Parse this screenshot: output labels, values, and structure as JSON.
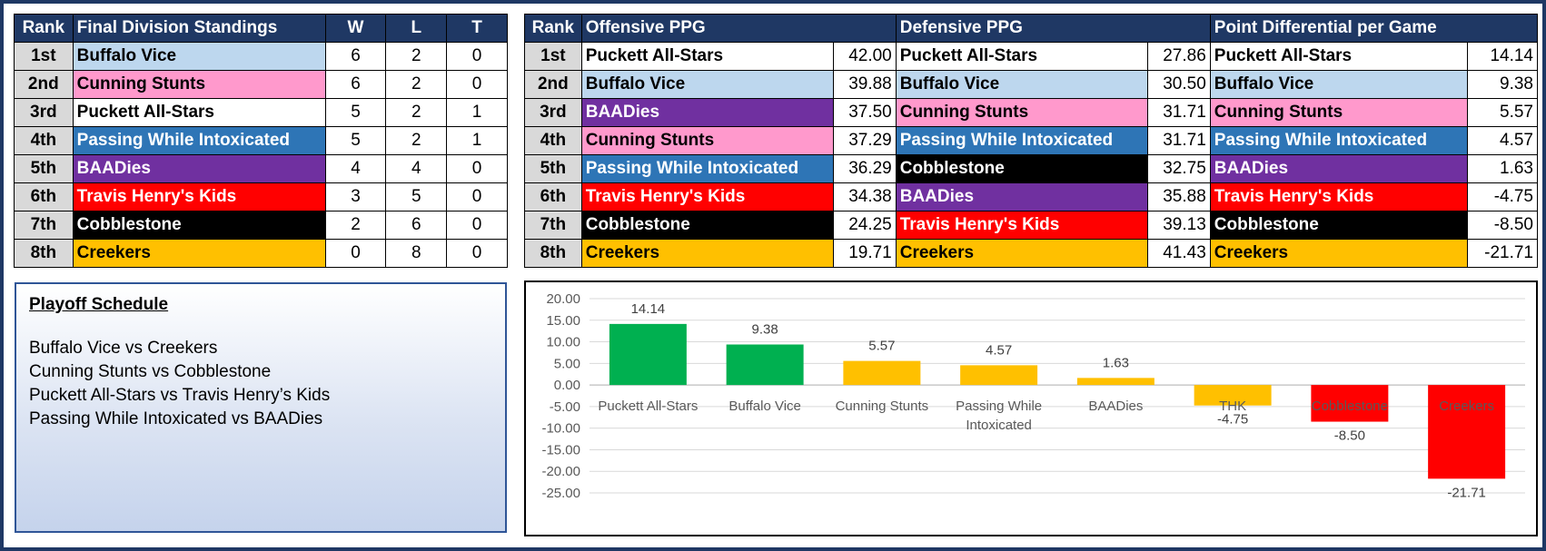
{
  "standings": {
    "headers": [
      "Rank",
      "Final Division Standings",
      "W",
      "L",
      "T"
    ],
    "rows": [
      {
        "rank": "1st",
        "team": "Buffalo Vice",
        "w": "6",
        "l": "2",
        "t": "0",
        "bg": "#bdd7ee",
        "fg": "#000000"
      },
      {
        "rank": "2nd",
        "team": "Cunning Stunts",
        "w": "6",
        "l": "2",
        "t": "0",
        "bg": "#ff99cc",
        "fg": "#000000"
      },
      {
        "rank": "3rd",
        "team": "Puckett All-Stars",
        "w": "5",
        "l": "2",
        "t": "1",
        "bg": "#ffffff",
        "fg": "#000000"
      },
      {
        "rank": "4th",
        "team": "Passing While Intoxicated",
        "w": "5",
        "l": "2",
        "t": "1",
        "bg": "#2e75b6",
        "fg": "#ffffff"
      },
      {
        "rank": "5th",
        "team": "BAADies",
        "w": "4",
        "l": "4",
        "t": "0",
        "bg": "#7030a0",
        "fg": "#ffffff"
      },
      {
        "rank": "6th",
        "team": "Travis Henry's Kids",
        "w": "3",
        "l": "5",
        "t": "0",
        "bg": "#ff0000",
        "fg": "#ffffff"
      },
      {
        "rank": "7th",
        "team": "Cobblestone",
        "w": "2",
        "l": "6",
        "t": "0",
        "bg": "#000000",
        "fg": "#ffffff"
      },
      {
        "rank": "8th",
        "team": "Creekers",
        "w": "0",
        "l": "8",
        "t": "0",
        "bg": "#ffc000",
        "fg": "#000000"
      }
    ]
  },
  "ppg": {
    "headers": [
      "Rank",
      "Offensive PPG",
      "Defensive PPG",
      "Point Differential per Game"
    ],
    "rows": [
      {
        "rank": "1st",
        "off": {
          "team": "Puckett All-Stars",
          "val": "42.00",
          "bg": "#ffffff",
          "fg": "#000000"
        },
        "def": {
          "team": "Puckett All-Stars",
          "val": "27.86",
          "bg": "#ffffff",
          "fg": "#000000"
        },
        "diff": {
          "team": "Puckett All-Stars",
          "val": "14.14",
          "bg": "#ffffff",
          "fg": "#000000"
        }
      },
      {
        "rank": "2nd",
        "off": {
          "team": "Buffalo Vice",
          "val": "39.88",
          "bg": "#bdd7ee",
          "fg": "#000000"
        },
        "def": {
          "team": "Buffalo Vice",
          "val": "30.50",
          "bg": "#bdd7ee",
          "fg": "#000000"
        },
        "diff": {
          "team": "Buffalo Vice",
          "val": "9.38",
          "bg": "#bdd7ee",
          "fg": "#000000"
        }
      },
      {
        "rank": "3rd",
        "off": {
          "team": "BAADies",
          "val": "37.50",
          "bg": "#7030a0",
          "fg": "#ffffff"
        },
        "def": {
          "team": "Cunning Stunts",
          "val": "31.71",
          "bg": "#ff99cc",
          "fg": "#000000"
        },
        "diff": {
          "team": "Cunning Stunts",
          "val": "5.57",
          "bg": "#ff99cc",
          "fg": "#000000"
        }
      },
      {
        "rank": "4th",
        "off": {
          "team": "Cunning Stunts",
          "val": "37.29",
          "bg": "#ff99cc",
          "fg": "#000000"
        },
        "def": {
          "team": "Passing While Intoxicated",
          "val": "31.71",
          "bg": "#2e75b6",
          "fg": "#ffffff"
        },
        "diff": {
          "team": "Passing While Intoxicated",
          "val": "4.57",
          "bg": "#2e75b6",
          "fg": "#ffffff"
        }
      },
      {
        "rank": "5th",
        "off": {
          "team": "Passing While Intoxicated",
          "val": "36.29",
          "bg": "#2e75b6",
          "fg": "#ffffff"
        },
        "def": {
          "team": "Cobblestone",
          "val": "32.75",
          "bg": "#000000",
          "fg": "#ffffff"
        },
        "diff": {
          "team": "BAADies",
          "val": "1.63",
          "bg": "#7030a0",
          "fg": "#ffffff"
        }
      },
      {
        "rank": "6th",
        "off": {
          "team": "Travis Henry's Kids",
          "val": "34.38",
          "bg": "#ff0000",
          "fg": "#ffffff"
        },
        "def": {
          "team": "BAADies",
          "val": "35.88",
          "bg": "#7030a0",
          "fg": "#ffffff"
        },
        "diff": {
          "team": "Travis Henry's Kids",
          "val": "-4.75",
          "bg": "#ff0000",
          "fg": "#ffffff"
        }
      },
      {
        "rank": "7th",
        "off": {
          "team": "Cobblestone",
          "val": "24.25",
          "bg": "#000000",
          "fg": "#ffffff"
        },
        "def": {
          "team": "Travis Henry's Kids",
          "val": "39.13",
          "bg": "#ff0000",
          "fg": "#ffffff"
        },
        "diff": {
          "team": "Cobblestone",
          "val": "-8.50",
          "bg": "#000000",
          "fg": "#ffffff"
        }
      },
      {
        "rank": "8th",
        "off": {
          "team": "Creekers",
          "val": "19.71",
          "bg": "#ffc000",
          "fg": "#000000"
        },
        "def": {
          "team": "Creekers",
          "val": "41.43",
          "bg": "#ffc000",
          "fg": "#000000"
        },
        "diff": {
          "team": "Creekers",
          "val": "-21.71",
          "bg": "#ffc000",
          "fg": "#000000"
        }
      }
    ]
  },
  "playoff": {
    "title": "Playoff Schedule",
    "games": [
      "Buffalo Vice vs Creekers",
      "Cunning Stunts vs Cobblestone",
      "Puckett All-Stars vs Travis Henry’s Kids",
      "Passing While Intoxicated vs BAADies"
    ]
  },
  "chart_data": {
    "type": "bar",
    "title": "",
    "xlabel": "",
    "ylabel": "",
    "categories": [
      "Puckett All-Stars",
      "Buffalo Vice",
      "Cunning Stunts",
      "Passing While Intoxicated",
      "BAADies",
      "THK",
      "Cobblestone",
      "Creekers"
    ],
    "values": [
      14.14,
      9.38,
      5.57,
      4.57,
      1.63,
      -4.75,
      -8.5,
      -21.71
    ],
    "value_labels": [
      "14.14",
      "9.38",
      "5.57",
      "4.57",
      "1.63",
      "-4.75",
      "-8.50",
      "-21.71"
    ],
    "bar_colors": [
      "#00b050",
      "#00b050",
      "#ffc000",
      "#ffc000",
      "#ffc000",
      "#ffc000",
      "#ff0000",
      "#ff0000"
    ],
    "ylim": [
      -25,
      20
    ],
    "yticks": [
      "20.00",
      "15.00",
      "10.00",
      "5.00",
      "0.00",
      "-5.00",
      "-10.00",
      "-15.00",
      "-20.00",
      "-25.00"
    ],
    "ytick_values": [
      20,
      15,
      10,
      5,
      0,
      -5,
      -10,
      -15,
      -20,
      -25
    ],
    "grid": true,
    "legend": "none"
  }
}
